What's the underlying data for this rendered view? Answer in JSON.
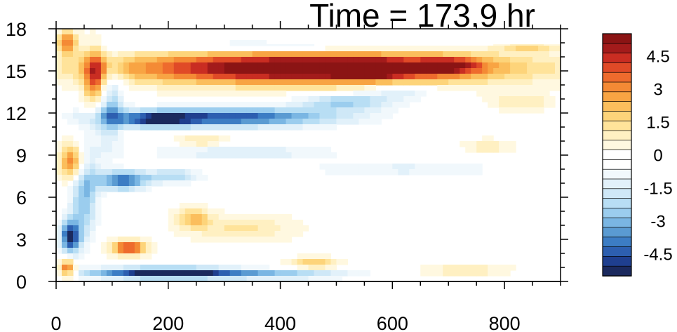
{
  "chart_data": {
    "type": "heatmap",
    "title": "Time = 173.9 hr",
    "xlabel": "",
    "ylabel": "",
    "xlim": [
      0,
      900
    ],
    "ylim": [
      0,
      18
    ],
    "x_ticks": [
      0,
      200,
      400,
      600,
      800
    ],
    "y_ticks": [
      0,
      3,
      6,
      9,
      12,
      15,
      18
    ],
    "x_tick_labels": [
      "0",
      "200",
      "400",
      "600",
      "800"
    ],
    "y_tick_labels": [
      "0",
      "3",
      "6",
      "9",
      "12",
      "15",
      "18"
    ],
    "colorbar": {
      "min": -5.5,
      "max": 5.5,
      "step": 0.5,
      "labels": [
        "4.5",
        "3",
        "1.5",
        "0",
        "-1.5",
        "-3",
        "-4.5"
      ],
      "label_values": [
        4.5,
        3,
        1.5,
        0,
        -1.5,
        -3,
        -4.5
      ],
      "colors": [
        "#1b2a5e",
        "#1f3f8f",
        "#2d5fb0",
        "#3c7dc4",
        "#5a9bd2",
        "#7ab6e3",
        "#9bcdee",
        "#b8def4",
        "#cfe8f7",
        "#e2f1fa",
        "#f1f8fc",
        "#ffffff",
        "#ffffff",
        "#fff8e0",
        "#fff0c2",
        "#ffe39a",
        "#fdd47a",
        "#fbbe5c",
        "#f8a443",
        "#f48a35",
        "#ee6b2d",
        "#e04a27",
        "#c92d22",
        "#a31b1b",
        "#8b1414"
      ]
    },
    "features": [
      {
        "x": 450,
        "y": 15.2,
        "sx": 330,
        "sy": 1.1,
        "v": 6.5
      },
      {
        "x": 560,
        "y": 15.1,
        "sx": 60,
        "sy": 0.6,
        "v": 2.5
      },
      {
        "x": 700,
        "y": 15.4,
        "sx": 55,
        "sy": 0.55,
        "v": 3
      },
      {
        "x": 840,
        "y": 16.7,
        "sx": 55,
        "sy": 0.35,
        "v": 1.6
      },
      {
        "x": 300,
        "y": 11.7,
        "sx": 210,
        "sy": 0.7,
        "v": -4.6
      },
      {
        "x": 520,
        "y": 12.8,
        "sx": 90,
        "sy": 0.6,
        "v": -2.5
      },
      {
        "x": 180,
        "y": 11.5,
        "sx": 60,
        "sy": 0.5,
        "v": -3
      },
      {
        "x": 620,
        "y": 13.6,
        "sx": 60,
        "sy": 0.6,
        "v": -1.6
      },
      {
        "x": 400,
        "y": 16.8,
        "sx": 260,
        "sy": 0.4,
        "v": -1.5
      },
      {
        "x": 200,
        "y": 0.6,
        "sx": 140,
        "sy": 0.4,
        "v": -6
      },
      {
        "x": 420,
        "y": 0.5,
        "sx": 130,
        "sy": 0.35,
        "v": -2.2
      },
      {
        "x": 120,
        "y": 7.2,
        "sx": 45,
        "sy": 0.7,
        "v": -4.2
      },
      {
        "x": 210,
        "y": 7.5,
        "sx": 50,
        "sy": 0.5,
        "v": -2.4
      },
      {
        "x": 330,
        "y": 9.2,
        "sx": 180,
        "sy": 0.5,
        "v": -1.6
      },
      {
        "x": 620,
        "y": 8,
        "sx": 200,
        "sy": 0.7,
        "v": -1.2
      },
      {
        "x": 50,
        "y": 6.5,
        "sx": 25,
        "sy": 3.5,
        "v": -3
      },
      {
        "x": 25,
        "y": 3.2,
        "sx": 18,
        "sy": 1.2,
        "v": -5
      },
      {
        "x": 95,
        "y": 12.5,
        "sx": 25,
        "sy": 3,
        "v": -2.5
      },
      {
        "x": 30,
        "y": 8.5,
        "sx": 22,
        "sy": 1.3,
        "v": 4
      },
      {
        "x": 20,
        "y": 17,
        "sx": 18,
        "sy": 0.8,
        "v": 3.5
      },
      {
        "x": 70,
        "y": 14.5,
        "sx": 20,
        "sy": 2,
        "v": 4
      },
      {
        "x": 20,
        "y": 0.9,
        "sx": 15,
        "sy": 0.6,
        "v": 4
      },
      {
        "x": 130,
        "y": 2.4,
        "sx": 30,
        "sy": 0.5,
        "v": 4.5
      },
      {
        "x": 245,
        "y": 4.5,
        "sx": 30,
        "sy": 0.7,
        "v": 2
      },
      {
        "x": 330,
        "y": 3.8,
        "sx": 90,
        "sy": 0.9,
        "v": 1.2
      },
      {
        "x": 460,
        "y": 1.3,
        "sx": 40,
        "sy": 0.4,
        "v": 2
      },
      {
        "x": 730,
        "y": 0.8,
        "sx": 70,
        "sy": 0.3,
        "v": 1.5
      },
      {
        "x": 830,
        "y": 12.8,
        "sx": 50,
        "sy": 0.6,
        "v": 1.2
      },
      {
        "x": 260,
        "y": 10,
        "sx": 40,
        "sy": 0.4,
        "v": 1.4
      },
      {
        "x": 770,
        "y": 9.6,
        "sx": 40,
        "sy": 0.5,
        "v": 1
      }
    ]
  }
}
